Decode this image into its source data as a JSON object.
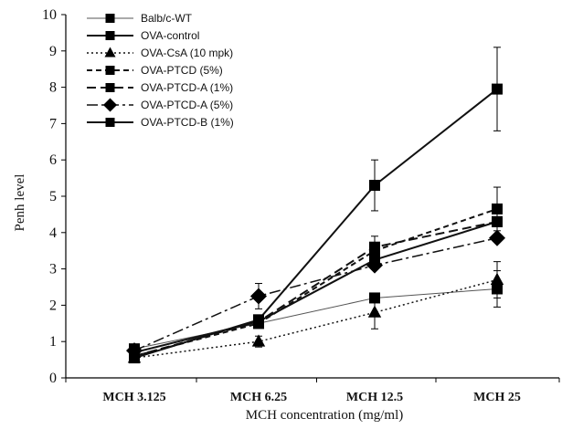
{
  "chart_data": {
    "type": "line",
    "title": "",
    "xlabel": "MCH concentration  (mg/ml)",
    "ylabel": "Penh level",
    "categories": [
      "MCH 3.125",
      "MCH 6.25",
      "MCH 12.5",
      "MCH 25"
    ],
    "ylim": [
      0,
      10
    ],
    "yticks": [
      "0",
      "1",
      "2",
      "3",
      "4",
      "5",
      "6",
      "7",
      "8",
      "9",
      "10"
    ],
    "grid": false,
    "legend_position": "top-left",
    "series": [
      {
        "name": "Balb/c-WT",
        "values": [
          0.8,
          1.5,
          2.2,
          2.45
        ],
        "errors": [
          0,
          0,
          0,
          0.5
        ],
        "marker": "square",
        "dash": "solid",
        "width": 1,
        "color": "#555555"
      },
      {
        "name": "OVA-control",
        "values": [
          0.55,
          1.6,
          5.3,
          7.95
        ],
        "errors": [
          0,
          0,
          0.7,
          1.15
        ],
        "marker": "square",
        "dash": "solid",
        "width": 2,
        "color": "#111111"
      },
      {
        "name": "OVA-CsA (10 mpk)",
        "values": [
          0.55,
          1.0,
          1.8,
          2.7
        ],
        "errors": [
          0,
          0.15,
          0.45,
          0.5
        ],
        "marker": "triangle",
        "dash": "dotted",
        "width": 1.5,
        "color": "#111111"
      },
      {
        "name": "OVA-PTCD (5%)",
        "values": [
          0.6,
          1.5,
          3.5,
          4.65
        ],
        "errors": [
          0,
          0,
          0.4,
          0.6
        ],
        "marker": "square",
        "dash": "dashed",
        "width": 2,
        "color": "#111111"
      },
      {
        "name": "OVA-PTCD-A (1%)",
        "values": [
          0.6,
          1.55,
          3.6,
          4.3
        ],
        "errors": [
          0,
          0,
          0,
          0
        ],
        "marker": "square",
        "dash": "longdash",
        "width": 2,
        "color": "#111111"
      },
      {
        "name": "OVA-PTCD-A (5%)",
        "values": [
          0.75,
          2.25,
          3.1,
          3.85
        ],
        "errors": [
          0,
          0.35,
          0,
          0
        ],
        "marker": "diamond",
        "dash": "dashdot",
        "width": 1.5,
        "color": "#111111"
      },
      {
        "name": "OVA-PTCD-B (1%)",
        "values": [
          0.7,
          1.55,
          3.25,
          4.3
        ],
        "errors": [
          0,
          0,
          0,
          0
        ],
        "marker": "square",
        "dash": "solid",
        "width": 2,
        "color": "#111111"
      }
    ]
  }
}
